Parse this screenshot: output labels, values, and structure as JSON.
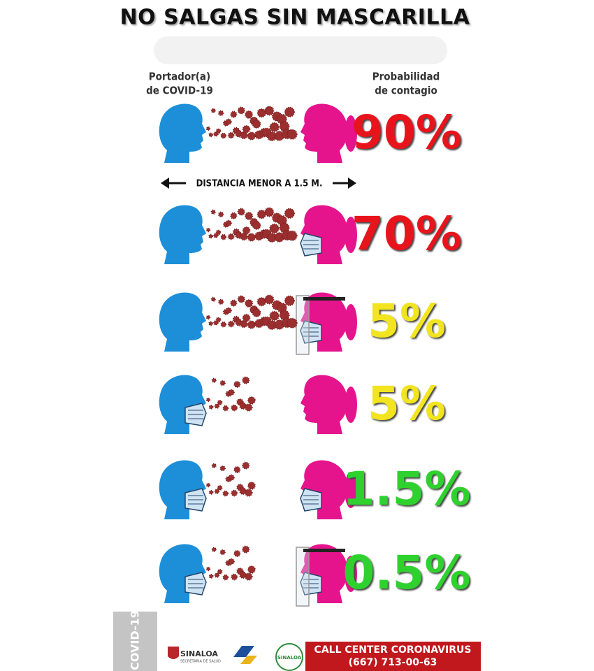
{
  "header": {
    "title": "NO SALGAS SIN MASCARILLA"
  },
  "labels": {
    "carrier": [
      "Portador(a)",
      "de COVID-19"
    ],
    "probability": [
      "Probabilidad",
      "de contagio"
    ]
  },
  "distance_label": "DISTANCIA MENOR A 1.5 M.",
  "rows": [
    {
      "probability": "90%",
      "color": "#e8141b"
    },
    {
      "probability": "70%",
      "color": "#e8141b"
    },
    {
      "probability": "5%",
      "color": "#f2e51f"
    },
    {
      "probability": "5%",
      "color": "#f2e51f"
    },
    {
      "probability": "1.5%",
      "color": "#2fd12f"
    },
    {
      "probability": "0.5%",
      "color": "#2fd12f"
    }
  ],
  "footer": {
    "side_label": "COVID-19",
    "logos": [
      "SINALOA",
      "SECRETARÍA DE SALUD",
      "SINALOA"
    ],
    "call_center": {
      "title": "CALL CENTER CORONAVIRUS",
      "phone": "(667) 713-00-63"
    }
  }
}
